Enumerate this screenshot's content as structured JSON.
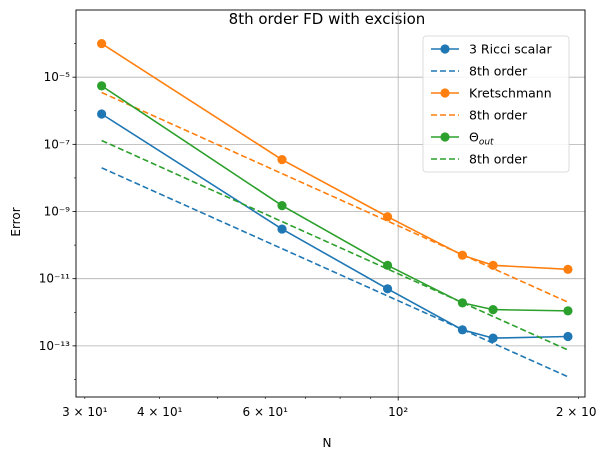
{
  "chart_data": {
    "type": "line",
    "title": "8th order FD with excision",
    "xlabel": "N",
    "ylabel": "Error",
    "xscale": "log",
    "yscale": "log",
    "xlim": [
      29,
      205
    ],
    "ylim": [
      3e-15,
      0.001
    ],
    "grid": "major",
    "legend_position": "top-right",
    "x_ticks": [
      {
        "value": 30,
        "label": "3 × 10¹"
      },
      {
        "value": 40,
        "label": "4 × 10¹"
      },
      {
        "value": 60,
        "label": "6 × 10¹"
      },
      {
        "value": 100,
        "label": "10²"
      },
      {
        "value": 200,
        "label": "2 × 10²"
      }
    ],
    "y_ticks": [
      {
        "value": 1e-13,
        "label": "10⁻¹³"
      },
      {
        "value": 1e-11,
        "label": "10⁻¹¹"
      },
      {
        "value": 1e-09,
        "label": "10⁻⁹"
      },
      {
        "value": 1e-07,
        "label": "10⁻⁷"
      },
      {
        "value": 1e-05,
        "label": "10⁻⁵"
      }
    ],
    "series": [
      {
        "name": "3 Ricci scalar",
        "color": "#1f77b4",
        "style": "solid-markers",
        "x": [
          32,
          64,
          96,
          128,
          144,
          192
        ],
        "y": [
          8e-07,
          3e-10,
          5e-12,
          3e-13,
          1.7e-13,
          1.9e-13
        ]
      },
      {
        "name": "8th order",
        "color": "#1f77b4",
        "style": "dashed",
        "x": [
          32,
          192
        ],
        "y": [
          2e-08,
          1.2e-14
        ]
      },
      {
        "name": "Kretschmann",
        "color": "#ff7f0e",
        "style": "solid-markers",
        "x": [
          32,
          64,
          96,
          128,
          144,
          192
        ],
        "y": [
          0.0001,
          3.5e-08,
          7e-10,
          5e-11,
          2.5e-11,
          1.9e-11
        ]
      },
      {
        "name": "8th order",
        "color": "#ff7f0e",
        "style": "dashed",
        "x": [
          32,
          192
        ],
        "y": [
          3.5e-06,
          2e-12
        ]
      },
      {
        "name": "Θ_out",
        "color": "#2ca02c",
        "style": "solid-markers",
        "x": [
          32,
          64,
          96,
          128,
          144,
          192
        ],
        "y": [
          5.5e-06,
          1.5e-09,
          2.5e-11,
          1.9e-12,
          1.2e-12,
          1.1e-12
        ]
      },
      {
        "name": "8th order",
        "color": "#2ca02c",
        "style": "dashed",
        "x": [
          32,
          192
        ],
        "y": [
          1.3e-07,
          7.5e-14
        ]
      }
    ],
    "legend": [
      {
        "text": "3 Ricci scalar",
        "series": 0
      },
      {
        "text": "8th order",
        "series": 1
      },
      {
        "text": "Kretschmann",
        "series": 2
      },
      {
        "text": "8th order",
        "series": 3
      },
      {
        "text": "Θ",
        "sub": "out",
        "series": 4
      },
      {
        "text": "8th order",
        "series": 5
      }
    ]
  }
}
